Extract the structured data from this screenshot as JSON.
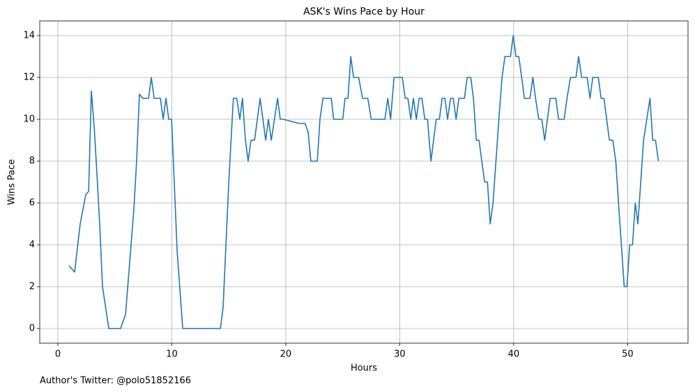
{
  "chart_data": {
    "type": "line",
    "title": "ASK's Wins Pace by Hour",
    "xlabel": "Hours",
    "ylabel": "Wins Pace",
    "annotation": "Author's Twitter: @polo51852166",
    "color": "#1f77b4",
    "grid": true,
    "xlim": [
      -1.59,
      55.3
    ],
    "ylim": [
      -0.7,
      14.7
    ],
    "xticks": [
      0,
      10,
      20,
      30,
      40,
      50
    ],
    "yticks": [
      0,
      2,
      4,
      6,
      8,
      10,
      12,
      14
    ],
    "x": [
      0.98,
      1.47,
      1.96,
      2.45,
      2.7,
      2.94,
      3.18,
      3.43,
      3.67,
      3.92,
      4.47,
      5.5,
      5.94,
      6.67,
      6.9,
      7.16,
      7.47,
      7.96,
      8.2,
      8.45,
      9.0,
      9.24,
      9.49,
      9.73,
      9.98,
      10.47,
      10.96,
      14.26,
      14.5,
      15.0,
      15.4,
      15.7,
      15.97,
      16.2,
      16.46,
      16.7,
      16.95,
      17.26,
      17.75,
      18.24,
      18.48,
      18.73,
      19.28,
      19.52,
      19.77,
      21.2,
      21.7,
      21.97,
      22.2,
      22.77,
      23.0,
      23.26,
      24.0,
      24.2,
      25.0,
      25.2,
      25.46,
      25.7,
      25.95,
      26.4,
      26.74,
      27.2,
      27.5,
      28.7,
      28.95,
      29.2,
      29.5,
      30.23,
      30.48,
      30.72,
      30.97,
      31.2,
      31.46,
      31.7,
      31.95,
      32.2,
      32.44,
      32.74,
      33.2,
      33.48,
      33.72,
      33.97,
      34.2,
      34.46,
      34.7,
      34.95,
      35.19,
      35.68,
      35.92,
      36.23,
      36.47,
      36.72,
      36.96,
      37.2,
      37.45,
      37.7,
      37.94,
      38.19,
      38.7,
      38.98,
      39.23,
      39.72,
      39.96,
      40.2,
      40.45,
      40.7,
      40.94,
      41.43,
      41.68,
      41.92,
      42.2,
      42.47,
      42.72,
      42.96,
      43.2,
      43.7,
      43.94,
      44.43,
      44.68,
      44.98,
      45.47,
      45.7,
      45.96,
      46.45,
      46.7,
      46.94,
      47.43,
      47.67,
      47.92,
      48.16,
      48.4,
      48.7,
      48.96,
      49.2,
      49.7,
      49.94,
      50.18,
      50.43,
      50.67,
      50.9,
      51.4,
      51.96,
      52.2,
      52.45,
      52.7
    ],
    "y": [
      3,
      2.7,
      5,
      6.4,
      6.55,
      11.35,
      9.7,
      7.4,
      5,
      2,
      0,
      0,
      0.67,
      5.7,
      7.9,
      11.2,
      11,
      11,
      12,
      11,
      11,
      10,
      11,
      10,
      10,
      3.67,
      0,
      0,
      1,
      7,
      11,
      11,
      10,
      11,
      9,
      8,
      9,
      9,
      11,
      9,
      10,
      9,
      11,
      10,
      10,
      9.8,
      9.8,
      9.37,
      8,
      8,
      10,
      11,
      11,
      10,
      10,
      11,
      11,
      13,
      12,
      12,
      11,
      11,
      10,
      10,
      11,
      10,
      12,
      12,
      11,
      11,
      10,
      11,
      10,
      11,
      11,
      10,
      10,
      8,
      10,
      10,
      11,
      11,
      10,
      11,
      11,
      10,
      11,
      11,
      12,
      12,
      11,
      9,
      9,
      8,
      7,
      7,
      5,
      6,
      10,
      12,
      13,
      13,
      14,
      13,
      13,
      12,
      11,
      11,
      12,
      11,
      10,
      10,
      9,
      10,
      11,
      11,
      10,
      10,
      11,
      12,
      12,
      13,
      12,
      12,
      11,
      12,
      12,
      11,
      11,
      10,
      9,
      9,
      8,
      6,
      2,
      2,
      4,
      4,
      6,
      5,
      9,
      11,
      9,
      9,
      8
    ]
  }
}
